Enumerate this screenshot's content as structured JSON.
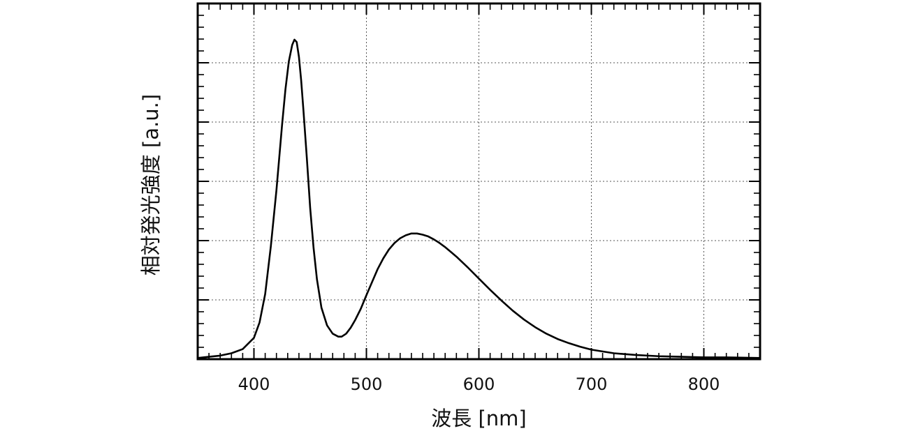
{
  "chart_data": {
    "type": "line",
    "title": "",
    "xlabel": "波長 [nm]",
    "ylabel": "相対発光強度 [a.u.]",
    "xlim": [
      350,
      850
    ],
    "ylim": [
      0,
      6
    ],
    "x_ticks": [
      400,
      500,
      600,
      700,
      800
    ],
    "x_tick_labels": [
      "400",
      "500",
      "600",
      "700",
      "800"
    ],
    "y_ticks": [
      1,
      2,
      3,
      4,
      5
    ],
    "y_tick_labels": [],
    "x_minor_step": 10,
    "y_minor_step": 0.2,
    "grid": true,
    "legend": "none",
    "series": [
      {
        "x": [
          350,
          360,
          370,
          380,
          390,
          400,
          405,
          410,
          415,
          420,
          425,
          428,
          431,
          434,
          436,
          438,
          440,
          442,
          444,
          447,
          450,
          453,
          456,
          460,
          465,
          470,
          475,
          478,
          482,
          486,
          490,
          495,
          500,
          505,
          510,
          515,
          520,
          525,
          530,
          535,
          540,
          545,
          550,
          555,
          560,
          565,
          570,
          575,
          580,
          590,
          600,
          610,
          620,
          630,
          640,
          650,
          660,
          670,
          680,
          690,
          700,
          720,
          740,
          760,
          780,
          800,
          820,
          850
        ],
        "y": [
          0.02,
          0.04,
          0.06,
          0.1,
          0.17,
          0.36,
          0.62,
          1.1,
          1.9,
          2.85,
          3.95,
          4.55,
          5.02,
          5.3,
          5.39,
          5.35,
          5.1,
          4.7,
          4.2,
          3.4,
          2.55,
          1.88,
          1.35,
          0.87,
          0.57,
          0.43,
          0.38,
          0.38,
          0.43,
          0.53,
          0.66,
          0.85,
          1.08,
          1.3,
          1.52,
          1.7,
          1.85,
          1.96,
          2.04,
          2.09,
          2.12,
          2.12,
          2.1,
          2.07,
          2.02,
          1.96,
          1.89,
          1.81,
          1.73,
          1.55,
          1.36,
          1.17,
          0.99,
          0.82,
          0.67,
          0.54,
          0.43,
          0.34,
          0.27,
          0.21,
          0.16,
          0.1,
          0.07,
          0.05,
          0.04,
          0.03,
          0.03,
          0.02
        ]
      }
    ]
  }
}
